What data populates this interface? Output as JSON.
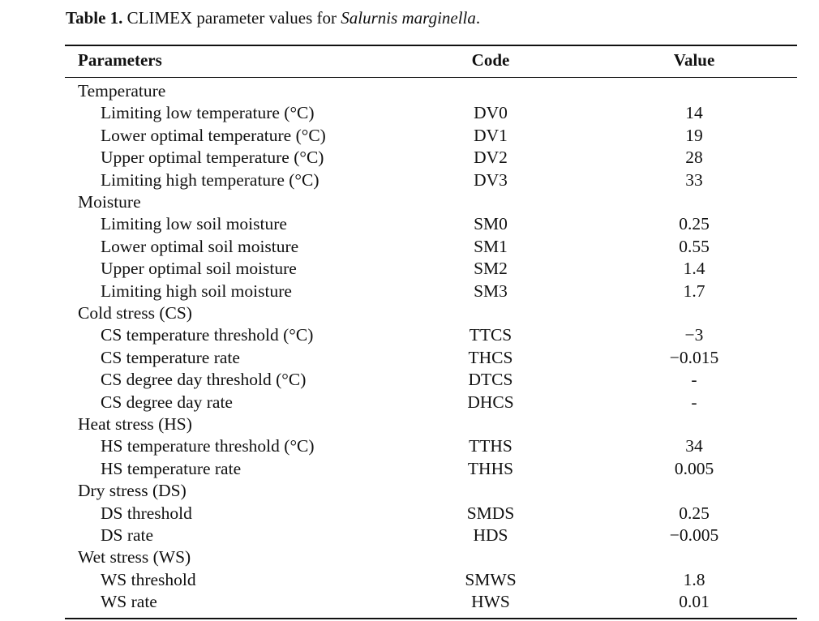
{
  "caption": {
    "label": "Table 1.",
    "text": "CLIMEX parameter values for",
    "species": "Salurnis marginella",
    "end": "."
  },
  "table": {
    "headers": {
      "parameter": "Parameters",
      "code": "Code",
      "value": "Value"
    },
    "rows": [
      {
        "parameter": "Temperature",
        "code": "",
        "value": "",
        "group": true
      },
      {
        "parameter": "Limiting low temperature (°C)",
        "code": "DV0",
        "value": "14"
      },
      {
        "parameter": "Lower optimal temperature (°C)",
        "code": "DV1",
        "value": "19"
      },
      {
        "parameter": "Upper optimal temperature (°C)",
        "code": "DV2",
        "value": "28"
      },
      {
        "parameter": "Limiting high temperature (°C)",
        "code": "DV3",
        "value": "33"
      },
      {
        "parameter": "Moisture",
        "code": "",
        "value": "",
        "group": true
      },
      {
        "parameter": "Limiting low soil moisture",
        "code": "SM0",
        "value": "0.25"
      },
      {
        "parameter": "Lower optimal soil moisture",
        "code": "SM1",
        "value": "0.55"
      },
      {
        "parameter": "Upper optimal soil moisture",
        "code": "SM2",
        "value": "1.4"
      },
      {
        "parameter": "Limiting high soil moisture",
        "code": "SM3",
        "value": "1.7"
      },
      {
        "parameter": "Cold stress (CS)",
        "code": "",
        "value": "",
        "group": true
      },
      {
        "parameter": "CS temperature threshold (°C)",
        "code": "TTCS",
        "value": "−3"
      },
      {
        "parameter": "CS temperature rate",
        "code": "THCS",
        "value": "−0.015"
      },
      {
        "parameter": "CS degree day threshold (°C)",
        "code": "DTCS",
        "value": "-"
      },
      {
        "parameter": "CS degree day rate",
        "code": "DHCS",
        "value": "-"
      },
      {
        "parameter": "Heat stress (HS)",
        "code": "",
        "value": "",
        "group": true
      },
      {
        "parameter": "HS temperature threshold (°C)",
        "code": "TTHS",
        "value": "34"
      },
      {
        "parameter": "HS temperature rate",
        "code": "THHS",
        "value": "0.005"
      },
      {
        "parameter": "Dry stress (DS)",
        "code": "",
        "value": "",
        "group": true
      },
      {
        "parameter": "DS threshold",
        "code": "SMDS",
        "value": "0.25"
      },
      {
        "parameter": "DS rate",
        "code": "HDS",
        "value": "−0.005"
      },
      {
        "parameter": "Wet stress (WS)",
        "code": "",
        "value": "",
        "group": true
      },
      {
        "parameter": "WS threshold",
        "code": "SMWS",
        "value": "1.8"
      },
      {
        "parameter": "WS rate",
        "code": "HWS",
        "value": "0.01"
      }
    ]
  }
}
